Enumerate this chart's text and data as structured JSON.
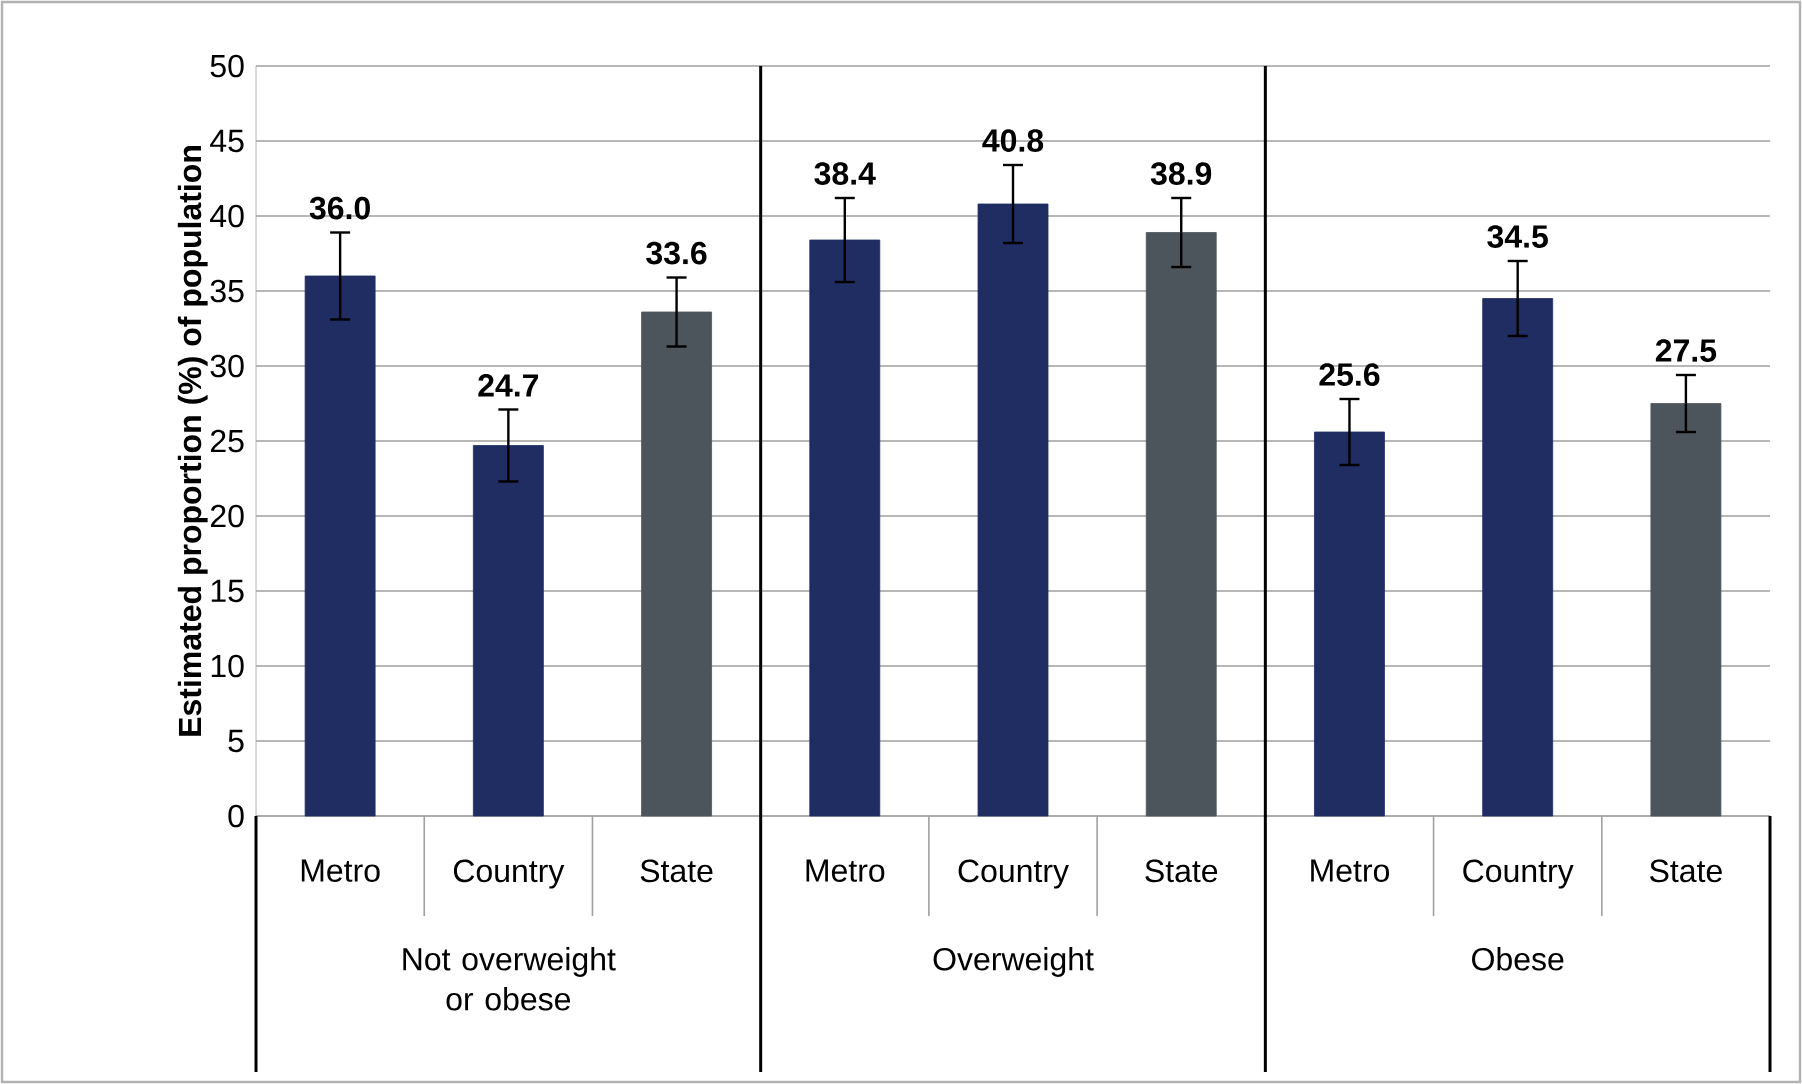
{
  "chart_data": {
    "type": "bar",
    "ylabel": "Estimated proportion (%) of population",
    "categories": [
      "Metro",
      "Country",
      "State",
      "Metro",
      "Country",
      "State",
      "Metro",
      "Country",
      "State"
    ],
    "values": [
      36.0,
      24.7,
      33.6,
      38.4,
      40.8,
      38.9,
      25.6,
      34.5,
      27.5
    ],
    "value_labels": [
      "36.0",
      "24.7",
      "33.6",
      "38.4",
      "40.8",
      "38.9",
      "25.6",
      "34.5",
      "27.5"
    ],
    "errors": [
      2.9,
      2.4,
      2.3,
      2.8,
      2.6,
      2.3,
      2.2,
      2.5,
      1.9
    ],
    "colors": [
      "#1f2d62",
      "#1f2d62",
      "#4d555c",
      "#1f2d62",
      "#1f2d62",
      "#4d555c",
      "#1f2d62",
      "#1f2d62",
      "#4d555c"
    ],
    "annotations": [
      "Not overweight or obese",
      "Overweight",
      "Obese"
    ],
    "ylim": [
      0,
      50
    ],
    "yticks": [
      0,
      5,
      10,
      15,
      20,
      25,
      30,
      35,
      40,
      45,
      50
    ],
    "grid": "y"
  }
}
